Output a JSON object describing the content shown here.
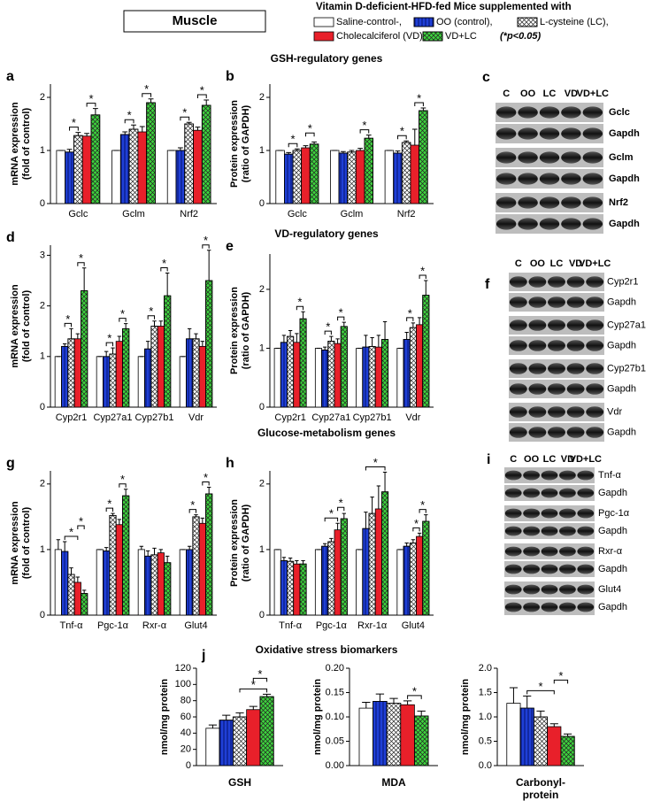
{
  "header": {
    "tissue": "Muscle",
    "title": "Vitamin D-deficient-HFD-fed Mice supplemented with",
    "note": "(*p<0.05)"
  },
  "legend": [
    {
      "name": "Saline-control-,",
      "color": "#ffffff",
      "pattern": "none"
    },
    {
      "name": "OO (control),",
      "color": "#1f3fd6",
      "pattern": "stripes"
    },
    {
      "name": "L-cysteine (LC),",
      "color": "#ffffff",
      "pattern": "crosshatch"
    },
    {
      "name": "Cholecalciferol (VD),",
      "color": "#e8202a",
      "pattern": "none"
    },
    {
      "name": "VD+LC",
      "color": "#3ed43e",
      "pattern": "crosshatch"
    }
  ],
  "significance": "*",
  "sections": [
    "GSH-regulatory genes",
    "VD-regulatory genes",
    "Glucose-metabolism genes",
    "Oxidative stress biomarkers"
  ],
  "chart_data": [
    {
      "type": "bar",
      "panel": "a",
      "ylabel": [
        "mRNA expression",
        "(fold of control)"
      ],
      "categories": [
        "Gclc",
        "Gclm",
        "Nrf2"
      ],
      "ylim": [
        0,
        2.25
      ],
      "yticks": [
        0,
        1,
        2
      ],
      "series": [
        {
          "values": [
            1,
            1,
            1
          ],
          "errors": [
            0,
            0,
            0
          ]
        },
        {
          "values": [
            0.97,
            1.3,
            1.0
          ],
          "errors": [
            0.05,
            0.05,
            0.05
          ]
        },
        {
          "values": [
            1.28,
            1.4,
            1.5
          ],
          "errors": [
            0.06,
            0.08,
            0.03
          ]
        },
        {
          "values": [
            1.27,
            1.35,
            1.38
          ],
          "errors": [
            0.05,
            0.1,
            0.06
          ]
        },
        {
          "values": [
            1.67,
            1.9,
            1.85
          ],
          "errors": [
            0.12,
            0.07,
            0.1
          ]
        }
      ],
      "brackets": [
        [
          0,
          1,
          2
        ],
        [
          0,
          3,
          4
        ],
        [
          1,
          1,
          2
        ],
        [
          1,
          3,
          4
        ],
        [
          2,
          1,
          2
        ],
        [
          2,
          3,
          4
        ]
      ]
    },
    {
      "type": "bar",
      "panel": "b",
      "ylabel": [
        "Protein expression",
        "(ratio of GAPDH)"
      ],
      "categories": [
        "Gclc",
        "Gclm",
        "Nrf2"
      ],
      "ylim": [
        0,
        2.25
      ],
      "yticks": [
        0,
        1,
        2
      ],
      "series": [
        {
          "values": [
            1,
            1,
            1
          ],
          "errors": [
            0,
            0,
            0
          ]
        },
        {
          "values": [
            0.93,
            0.95,
            0.95
          ],
          "errors": [
            0.03,
            0.03,
            0.04
          ]
        },
        {
          "values": [
            1.0,
            0.97,
            1.15
          ],
          "errors": [
            0.03,
            0.03,
            0.03
          ]
        },
        {
          "values": [
            1.05,
            1.0,
            1.1
          ],
          "errors": [
            0.04,
            0.04,
            0.3
          ]
        },
        {
          "values": [
            1.12,
            1.23,
            1.75
          ],
          "errors": [
            0.04,
            0.06,
            0.05
          ]
        }
      ],
      "brackets": [
        [
          0,
          1,
          2
        ],
        [
          0,
          3,
          4
        ],
        [
          1,
          3,
          4
        ],
        [
          2,
          1,
          2
        ],
        [
          2,
          3,
          4
        ]
      ]
    },
    {
      "type": "bar",
      "panel": "d",
      "ylabel": [
        "mRNA expression",
        "(fold of control)"
      ],
      "categories": [
        "Cyp2r1",
        "Cyp27a1",
        "Cyp27b1",
        "Vdr"
      ],
      "ylim": [
        0,
        3.2
      ],
      "yticks": [
        0,
        1,
        2,
        3
      ],
      "series": [
        {
          "values": [
            1,
            1,
            1,
            1
          ],
          "errors": [
            0,
            0,
            0,
            0
          ]
        },
        {
          "values": [
            1.2,
            1.0,
            1.15,
            1.35
          ],
          "errors": [
            0.05,
            0.1,
            0.15,
            0.2
          ]
        },
        {
          "values": [
            1.35,
            1.05,
            1.6,
            1.35
          ],
          "errors": [
            0.2,
            0.12,
            0.1,
            0.1
          ]
        },
        {
          "values": [
            1.35,
            1.3,
            1.6,
            1.2
          ],
          "errors": [
            0.1,
            0.1,
            0.1,
            0.1
          ]
        },
        {
          "values": [
            2.3,
            1.55,
            2.2,
            2.5
          ],
          "errors": [
            0.45,
            0.1,
            0.45,
            0.6
          ]
        }
      ],
      "brackets": [
        [
          0,
          1,
          2
        ],
        [
          0,
          3,
          4
        ],
        [
          1,
          1,
          2
        ],
        [
          1,
          3,
          4
        ],
        [
          2,
          1,
          2
        ],
        [
          2,
          3,
          4
        ],
        [
          3,
          3,
          4
        ]
      ]
    },
    {
      "type": "bar",
      "panel": "e",
      "ylabel": [
        "Protein expression",
        "(ratio of GAPDH)"
      ],
      "categories": [
        "Cyp2r1",
        "Cyp27a1",
        "Cyp27b1",
        "Vdr"
      ],
      "ylim": [
        0,
        2.6
      ],
      "yticks": [
        0,
        1,
        2
      ],
      "series": [
        {
          "values": [
            1,
            1,
            1,
            1
          ],
          "errors": [
            0,
            0,
            0,
            0
          ]
        },
        {
          "values": [
            1.1,
            0.97,
            1.02,
            1.15
          ],
          "errors": [
            0.12,
            0.05,
            0.2,
            0.12
          ]
        },
        {
          "values": [
            1.2,
            1.12,
            1.03,
            1.35
          ],
          "errors": [
            0.1,
            0.08,
            0.15,
            0.08
          ]
        },
        {
          "values": [
            1.1,
            1.08,
            1.02,
            1.4
          ],
          "errors": [
            0.15,
            0.08,
            0.2,
            0.12
          ]
        },
        {
          "values": [
            1.5,
            1.37,
            1.15,
            1.9
          ],
          "errors": [
            0.12,
            0.07,
            0.3,
            0.25
          ]
        }
      ],
      "brackets": [
        [
          0,
          3,
          4
        ],
        [
          1,
          1,
          2
        ],
        [
          1,
          3,
          4
        ],
        [
          3,
          1,
          2
        ],
        [
          3,
          3,
          4
        ]
      ]
    },
    {
      "type": "bar",
      "panel": "g",
      "ylabel": [
        "mRNA expression",
        "(fold of control)"
      ],
      "categories": [
        "Tnf-α",
        "Pgc-1α",
        "Rxr-α",
        "Glut4"
      ],
      "ylim": [
        0,
        2.2
      ],
      "yticks": [
        0,
        1,
        2
      ],
      "series": [
        {
          "values": [
            1,
            1,
            1,
            1
          ],
          "errors": [
            0.15,
            0,
            0.05,
            0
          ]
        },
        {
          "values": [
            0.97,
            0.98,
            0.9,
            1.0
          ],
          "errors": [
            0.15,
            0.05,
            0.08,
            0.05
          ]
        },
        {
          "values": [
            0.62,
            1.52,
            0.92,
            1.5
          ],
          "errors": [
            0.1,
            0.03,
            0.1,
            0.03
          ]
        },
        {
          "values": [
            0.5,
            1.38,
            0.95,
            1.4
          ],
          "errors": [
            0.08,
            0.08,
            0.05,
            0.08
          ]
        },
        {
          "values": [
            0.33,
            1.82,
            0.8,
            1.85
          ],
          "errors": [
            0.05,
            0.1,
            0.1,
            0.1
          ]
        }
      ],
      "brackets": [
        [
          0,
          1,
          3
        ],
        [
          0,
          3,
          4
        ],
        [
          1,
          1,
          2
        ],
        [
          1,
          3,
          4
        ],
        [
          3,
          1,
          2
        ],
        [
          3,
          3,
          4
        ]
      ]
    },
    {
      "type": "bar",
      "panel": "h",
      "ylabel": [
        "Protein expression",
        "(ratio of GAPDH)"
      ],
      "categories": [
        "Tnf-α",
        "Pgc-1α",
        "Rxr-1α",
        "Glut4"
      ],
      "ylim": [
        0,
        2.2
      ],
      "yticks": [
        0,
        1,
        2
      ],
      "series": [
        {
          "values": [
            1,
            1,
            1,
            1
          ],
          "errors": [
            0,
            0,
            0,
            0
          ]
        },
        {
          "values": [
            0.83,
            1.05,
            1.32,
            1.05
          ],
          "errors": [
            0.05,
            0.04,
            0.25,
            0.05
          ]
        },
        {
          "values": [
            0.82,
            1.12,
            1.55,
            1.1
          ],
          "errors": [
            0.05,
            0.05,
            0.25,
            0.05
          ]
        },
        {
          "values": [
            0.78,
            1.3,
            1.62,
            1.2
          ],
          "errors": [
            0.05,
            0.1,
            0.35,
            0.05
          ]
        },
        {
          "values": [
            0.78,
            1.47,
            1.88,
            1.43
          ],
          "errors": [
            0.05,
            0.08,
            0.3,
            0.1
          ]
        }
      ],
      "brackets": [
        [
          1,
          1,
          3
        ],
        [
          1,
          3,
          4
        ],
        [
          2,
          1,
          4
        ],
        [
          3,
          2,
          3
        ],
        [
          3,
          3,
          4
        ]
      ]
    },
    {
      "type": "bar",
      "panel": "j",
      "ylabel": [
        "nmol/mg protein"
      ],
      "xlabel": [
        "GSH"
      ],
      "categories": [
        null
      ],
      "ylim": [
        0,
        120
      ],
      "yticks": [
        0,
        20,
        40,
        60,
        80,
        100,
        120
      ],
      "series": [
        {
          "values": [
            46
          ],
          "errors": [
            4
          ]
        },
        {
          "values": [
            56
          ],
          "errors": [
            6
          ]
        },
        {
          "values": [
            60
          ],
          "errors": [
            5
          ]
        },
        {
          "values": [
            69
          ],
          "errors": [
            4
          ]
        },
        {
          "values": [
            85
          ],
          "errors": [
            3
          ]
        }
      ],
      "brackets": [
        [
          0,
          2,
          4
        ],
        [
          0,
          3,
          4
        ]
      ]
    },
    {
      "type": "bar",
      "ylabel": [
        "nmol/mg protein"
      ],
      "xlabel": [
        "MDA"
      ],
      "categories": [
        null
      ],
      "ylim": [
        0,
        0.2
      ],
      "yticks": [
        {
          "value": 0,
          "label": "0.00"
        },
        {
          "value": 0.05,
          "label": "0.05"
        },
        {
          "value": 0.1,
          "label": "0.10"
        },
        {
          "value": 0.15,
          "label": "0.15"
        },
        {
          "value": 0.2,
          "label": "0.20"
        }
      ],
      "series": [
        {
          "values": [
            0.118
          ],
          "errors": [
            0.012
          ]
        },
        {
          "values": [
            0.132
          ],
          "errors": [
            0.015
          ]
        },
        {
          "values": [
            0.128
          ],
          "errors": [
            0.01
          ]
        },
        {
          "values": [
            0.125
          ],
          "errors": [
            0.008
          ]
        },
        {
          "values": [
            0.102
          ],
          "errors": [
            0.01
          ]
        }
      ],
      "brackets": [
        [
          0,
          3,
          4
        ]
      ]
    },
    {
      "type": "bar",
      "ylabel": [
        "nmol/mg protein"
      ],
      "xlabel": [
        "Carbonyl-",
        "protein"
      ],
      "categories": [
        null
      ],
      "ylim": [
        0,
        2.0
      ],
      "yticks": [
        {
          "value": 0,
          "label": "0.0"
        },
        {
          "value": 0.5,
          "label": "0.5"
        },
        {
          "value": 1,
          "label": "1.0"
        },
        {
          "value": 1.5,
          "label": "1.5"
        },
        {
          "value": 2,
          "label": "2.0"
        }
      ],
      "series": [
        {
          "values": [
            1.28
          ],
          "errors": [
            0.32
          ]
        },
        {
          "values": [
            1.18
          ],
          "errors": [
            0.25
          ]
        },
        {
          "values": [
            1.0
          ],
          "errors": [
            0.12
          ]
        },
        {
          "values": [
            0.8
          ],
          "errors": [
            0.06
          ]
        },
        {
          "values": [
            0.6
          ],
          "errors": [
            0.05
          ]
        }
      ],
      "brackets": [
        [
          0,
          1,
          3
        ],
        [
          0,
          3,
          4
        ]
      ]
    }
  ],
  "blots": [
    {
      "panel": "c",
      "lanes": [
        "C",
        "OO",
        "LC",
        "VD",
        "VD+LC"
      ],
      "rows": [
        "Gclc",
        "Gapdh",
        "Gclm",
        "Gapdh",
        "Nrf2",
        "Gapdh"
      ]
    },
    {
      "panel": "f",
      "lanes": [
        "C",
        "OO",
        "LC",
        "VD",
        "VD+LC"
      ],
      "rows": [
        "Cyp2r1",
        "Gapdh",
        "Cyp27a1",
        "Gapdh",
        "Cyp27b1",
        "Gapdh",
        "Vdr",
        "Gapdh"
      ]
    },
    {
      "panel": "i",
      "lanes": [
        "C",
        "OO",
        "LC",
        "VD",
        "VD+LC"
      ],
      "rows": [
        "Tnf-α",
        "Gapdh",
        "Pgc-1α",
        "Gapdh",
        "Rxr-α",
        "Gapdh",
        "Glut4",
        "Gapdh"
      ]
    }
  ]
}
